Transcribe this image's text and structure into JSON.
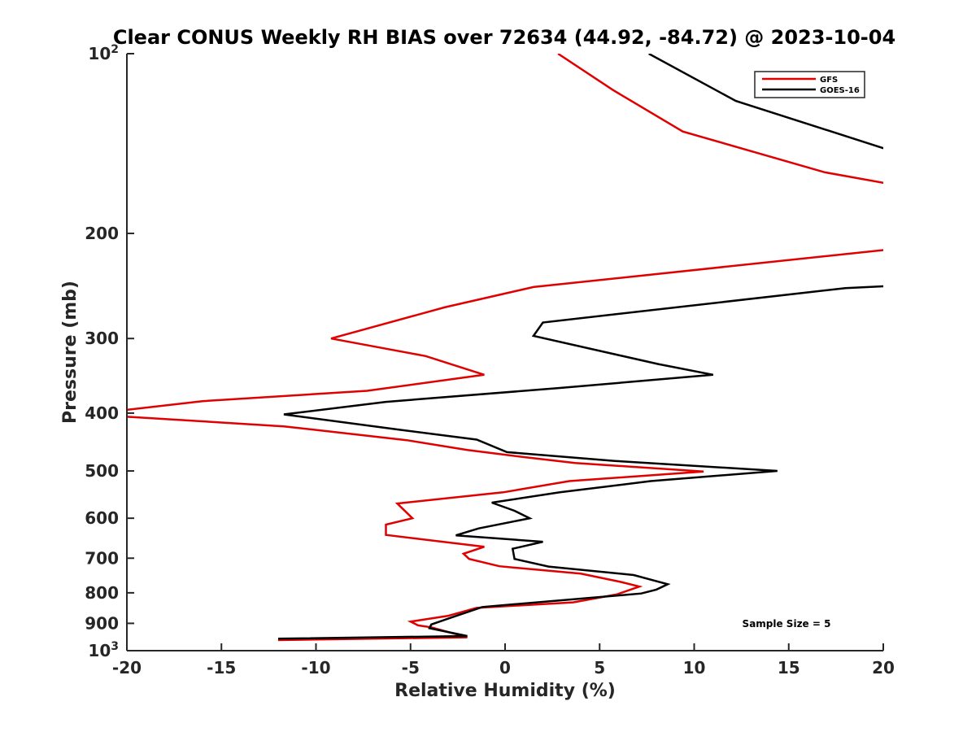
{
  "chart_data": {
    "type": "line",
    "title": "Clear CONUS Weekly RH BIAS over 72634 (44.92, -84.72) @ 2023-10-04",
    "xlabel": "Relative Humidity (%)",
    "ylabel": "Pressure (mb)",
    "xlim": [
      -20,
      20
    ],
    "ylim": [
      100,
      1000
    ],
    "yscale": "log",
    "y_reversed": true,
    "grid": false,
    "x_ticks": [
      -20,
      -15,
      -10,
      -5,
      0,
      5,
      10,
      15,
      20
    ],
    "x_tick_labels": [
      "-20",
      "-15",
      "-10",
      "-5",
      "0",
      "5",
      "10",
      "15",
      "20"
    ],
    "y_ticks": [
      100,
      200,
      300,
      400,
      500,
      600,
      700,
      800,
      900,
      1000
    ],
    "y_tick_labels": [
      "10^2",
      "200",
      "300",
      "400",
      "500",
      "600",
      "700",
      "800",
      "900",
      "10^3"
    ],
    "legend": {
      "position": "top-right",
      "entries": [
        "GFS",
        "GOES-16"
      ]
    },
    "annotation": "Sample Size = 5",
    "series": [
      {
        "name": "GFS",
        "color": "#e00000",
        "points": [
          [
            2.8,
            100
          ],
          [
            5.7,
            115
          ],
          [
            9.4,
            135
          ],
          [
            16.9,
            158
          ],
          [
            20.2,
            165
          ],
          [
            20.2,
            213
          ],
          [
            1.5,
            246
          ],
          [
            -3.2,
            266
          ],
          [
            -9.2,
            300
          ],
          [
            -4.2,
            321
          ],
          [
            -1.1,
            345
          ],
          [
            -7.3,
            367
          ],
          [
            -16.0,
            382
          ],
          [
            -20.3,
            396
          ],
          [
            -20.3,
            405
          ],
          [
            -11.7,
            421
          ],
          [
            -5.2,
            444
          ],
          [
            -2.0,
            461
          ],
          [
            1.0,
            474
          ],
          [
            3.7,
            485
          ],
          [
            10.5,
            501
          ],
          [
            3.4,
            520
          ],
          [
            -0.1,
            543
          ],
          [
            -5.7,
            567
          ],
          [
            -5.4,
            579
          ],
          [
            -4.9,
            600
          ],
          [
            -6.3,
            615
          ],
          [
            -6.3,
            640
          ],
          [
            -1.1,
            670
          ],
          [
            -2.2,
            688
          ],
          [
            -1.9,
            702
          ],
          [
            -0.3,
            722
          ],
          [
            4.0,
            743
          ],
          [
            6.1,
            767
          ],
          [
            7.1,
            781
          ],
          [
            5.9,
            805
          ],
          [
            3.6,
            830
          ],
          [
            -1.5,
            848
          ],
          [
            -3.0,
            874
          ],
          [
            -5.0,
            894
          ],
          [
            -4.6,
            907
          ],
          [
            -3.9,
            914
          ],
          [
            -2.0,
            950
          ],
          [
            -12.0,
            960
          ]
        ]
      },
      {
        "name": "GOES-16",
        "color": "#000000",
        "points": [
          [
            7.6,
            100
          ],
          [
            12.2,
            120
          ],
          [
            20.3,
            145
          ],
          [
            20.3,
            245
          ],
          [
            18.0,
            247
          ],
          [
            2.0,
            282
          ],
          [
            1.5,
            297
          ],
          [
            8.1,
            331
          ],
          [
            11.0,
            345
          ],
          [
            2.9,
            363
          ],
          [
            -6.3,
            383
          ],
          [
            -11.7,
            402
          ],
          [
            -5.7,
            426
          ],
          [
            -1.5,
            443
          ],
          [
            0.1,
            465
          ],
          [
            5.8,
            481
          ],
          [
            14.4,
            500
          ],
          [
            7.7,
            520
          ],
          [
            2.9,
            543
          ],
          [
            -0.7,
            565
          ],
          [
            0.5,
            583
          ],
          [
            1.3,
            600
          ],
          [
            -1.4,
            624
          ],
          [
            -2.6,
            641
          ],
          [
            2.0,
            657
          ],
          [
            0.4,
            675
          ],
          [
            0.5,
            702
          ],
          [
            2.3,
            723
          ],
          [
            6.8,
            747
          ],
          [
            8.6,
            774
          ],
          [
            8.0,
            790
          ],
          [
            7.2,
            802
          ],
          [
            -1.2,
            845
          ],
          [
            -2.8,
            879
          ],
          [
            -3.9,
            904
          ],
          [
            -4.0,
            917
          ],
          [
            -2.0,
            945
          ],
          [
            -12.0,
            955
          ]
        ]
      }
    ]
  }
}
